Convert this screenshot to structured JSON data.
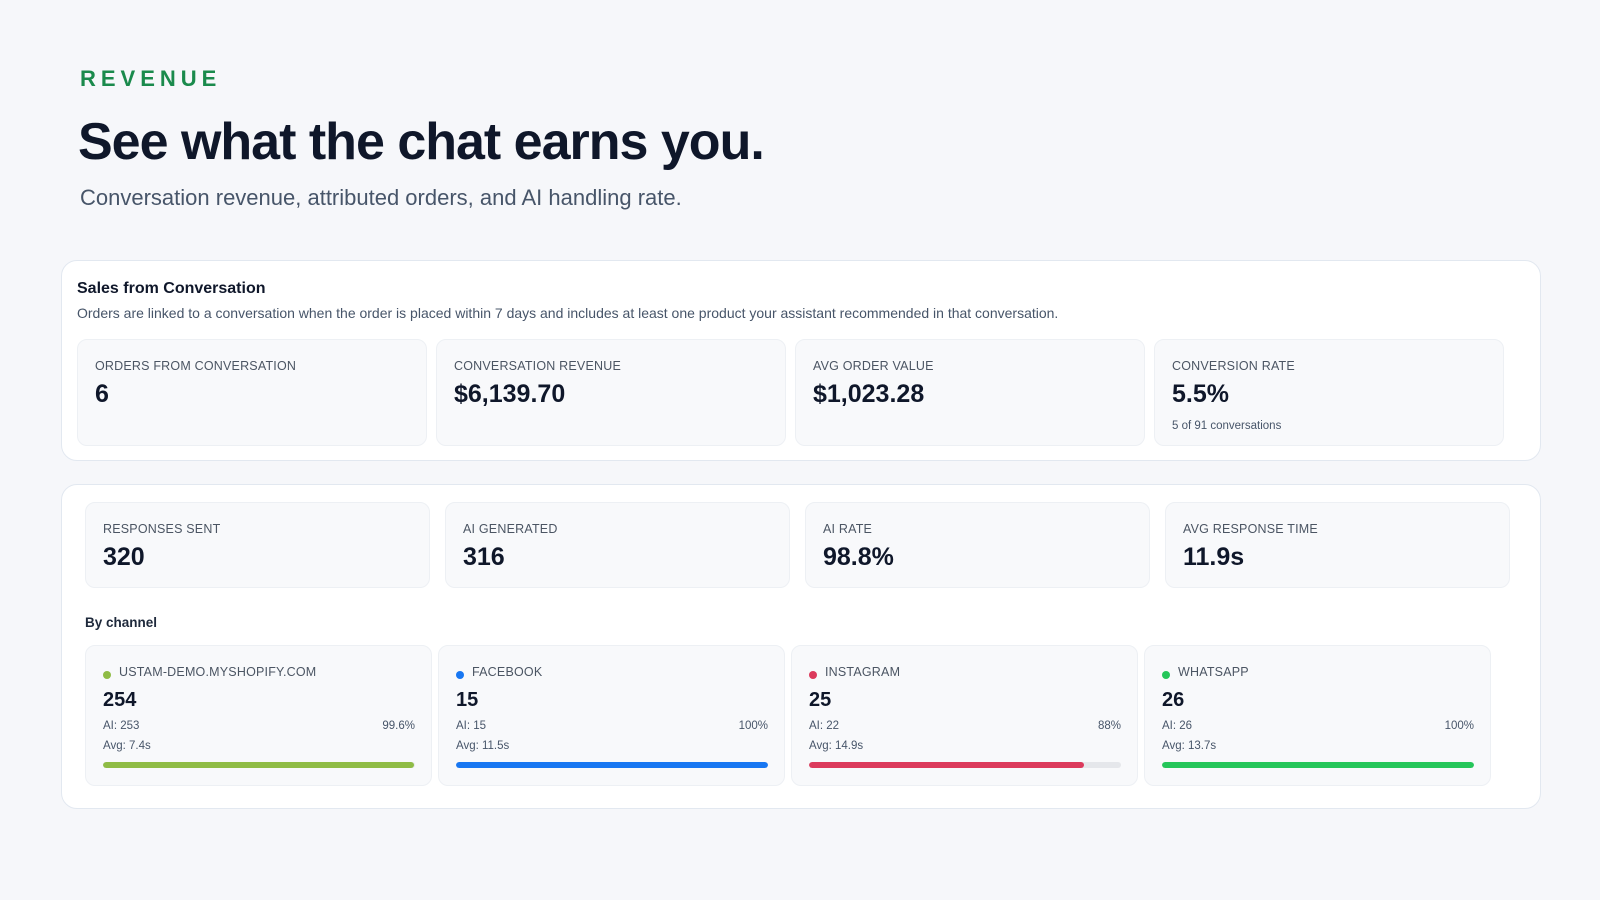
{
  "hero": {
    "eyebrow": "REVENUE",
    "headline": "See what the chat earns you.",
    "subheadline": "Conversation revenue, attributed orders, and AI handling rate."
  },
  "sales": {
    "title": "Sales from Conversation",
    "description": "Orders are linked to a conversation when the order is placed within 7 days and includes at least one product your assistant recommended in that conversation.",
    "cards": [
      {
        "label": "ORDERS FROM CONVERSATION",
        "value": "6",
        "sub": ""
      },
      {
        "label": "CONVERSATION REVENUE",
        "value": "$6,139.70",
        "sub": ""
      },
      {
        "label": "AVG ORDER VALUE",
        "value": "$1,023.28",
        "sub": ""
      },
      {
        "label": "CONVERSION RATE",
        "value": "5.5%",
        "sub": "5 of 91 conversations"
      }
    ]
  },
  "ai": {
    "cards": [
      {
        "label": "RESPONSES SENT",
        "value": "320"
      },
      {
        "label": "AI GENERATED",
        "value": "316"
      },
      {
        "label": "AI RATE",
        "value": "98.8%"
      },
      {
        "label": "AVG RESPONSE TIME",
        "value": "11.9s"
      }
    ],
    "by_channel_label": "By channel",
    "channels": [
      {
        "name": "USTAM-DEMO.MYSHOPIFY.COM",
        "value": "254",
        "ai": "AI: 253",
        "pct": "99.6%",
        "avg": "Avg: 7.4s",
        "fraction": 0.996,
        "color": "#8fbc45"
      },
      {
        "name": "FACEBOOK",
        "value": "15",
        "ai": "AI: 15",
        "pct": "100%",
        "avg": "Avg: 11.5s",
        "fraction": 1.0,
        "color": "#1877f2"
      },
      {
        "name": "INSTAGRAM",
        "value": "25",
        "ai": "AI: 22",
        "pct": "88%",
        "avg": "Avg: 14.9s",
        "fraction": 0.88,
        "color": "#dc3a5c"
      },
      {
        "name": "WHATSAPP",
        "value": "26",
        "ai": "AI: 26",
        "pct": "100%",
        "avg": "Avg: 13.7s",
        "fraction": 1.0,
        "color": "#25c65a"
      }
    ]
  }
}
